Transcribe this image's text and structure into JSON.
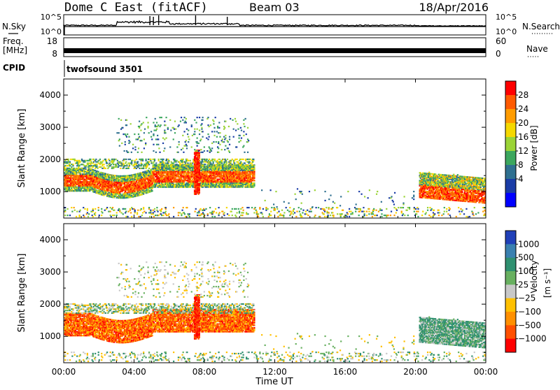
{
  "header": {
    "station": "Dome C East (fitACF)",
    "beam": "Beam 03",
    "date": "18/Apr/2016"
  },
  "sky_panel": {
    "left_label": "N.Sky",
    "left_ticks": [
      "10^5",
      "10^0"
    ],
    "right_label": "N.Search",
    "right_ticks": [
      "10^5",
      "10^0"
    ],
    "right_legend_line": "dotted"
  },
  "freq_panel": {
    "left_label_top": "Freq.",
    "left_label_unit": "[MHz]",
    "left_ticks": [
      "18",
      "8"
    ],
    "right_label": "Nave",
    "right_ticks": [
      "60",
      "0"
    ],
    "right_legend_line": "dotted"
  },
  "cpid_panel": {
    "label": "CPID",
    "program": "twofsound 3501"
  },
  "time_axis": {
    "xlabel": "Time UT",
    "ticks": [
      "00:00",
      "04:00",
      "08:00",
      "12:00",
      "16:00",
      "20:00",
      "00:00"
    ]
  },
  "chart_data": [
    {
      "type": "heatmap",
      "title": "",
      "xlabel": "Time UT",
      "ylabel": "Slant Range [km]",
      "ylim": [
        180,
        4500
      ],
      "yticks": [
        "1000",
        "2000",
        "3000",
        "4000"
      ],
      "colorbar": {
        "label": "Power [dB]",
        "ticks": [
          "28",
          "24",
          "20",
          "16",
          "12",
          "8",
          "4"
        ],
        "colors": [
          "#ff0000",
          "#ff5a00",
          "#ff9c00",
          "#f5d800",
          "#9bd437",
          "#3ca75e",
          "#2f7090",
          "#1a3ca6",
          "#0000ff"
        ]
      }
    },
    {
      "type": "heatmap",
      "title": "",
      "xlabel": "Time UT",
      "ylabel": "Slant Range [km]",
      "ylim": [
        180,
        4500
      ],
      "yticks": [
        "1000",
        "2000",
        "3000",
        "4000"
      ],
      "colorbar": {
        "label": "Velocity",
        "unit": "[m s⁻¹]",
        "ticks": [
          "1000",
          "500",
          "100",
          "25",
          "−25",
          "−100",
          "−500",
          "−1000"
        ],
        "colors": [
          "#2040b8",
          "#3a80b0",
          "#2f9070",
          "#68b060",
          "#c8c8c8",
          "#ffc000",
          "#ff9000",
          "#ff5000",
          "#ff0000"
        ]
      }
    }
  ]
}
